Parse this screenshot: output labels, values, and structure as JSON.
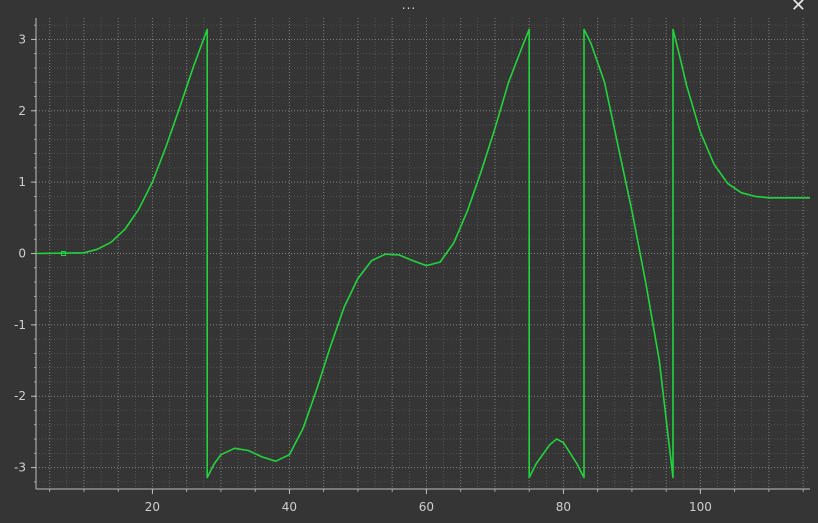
{
  "window": {
    "handle_label": "...",
    "close_glyph": "✕"
  },
  "colors": {
    "background": "#353535",
    "grid": "#8a8a8a",
    "axis": "#bdbdbd",
    "line": "#22d43c"
  },
  "chart_data": {
    "type": "line",
    "title": "",
    "xlabel": "",
    "ylabel": "",
    "xlim": [
      3,
      116
    ],
    "ylim": [
      -3.3,
      3.3
    ],
    "x_ticks": [
      20,
      40,
      60,
      80,
      100
    ],
    "y_ticks": [
      3,
      2,
      1,
      0,
      -1,
      -2,
      -3
    ],
    "grid": true,
    "marker_point": [
      7,
      0
    ],
    "series": [
      {
        "x": [
          3,
          10,
          12,
          14,
          16,
          18,
          20,
          22,
          24,
          26,
          28,
          28,
          29,
          30,
          32,
          34,
          36,
          38,
          40,
          42,
          44,
          46,
          48,
          50,
          52,
          54,
          56,
          58,
          60,
          62,
          64,
          66,
          68,
          70,
          72,
          74,
          75,
          75,
          76,
          78,
          79,
          80,
          82,
          83,
          83,
          84,
          86,
          88,
          90,
          92,
          94,
          96,
          96,
          97,
          98,
          100,
          102,
          104,
          106,
          108,
          110,
          112,
          116
        ],
        "y": [
          0,
          0.01,
          0.06,
          0.16,
          0.34,
          0.62,
          1.0,
          1.5,
          2.05,
          2.62,
          3.14,
          -3.14,
          -2.95,
          -2.82,
          -2.73,
          -2.76,
          -2.85,
          -2.91,
          -2.82,
          -2.45,
          -1.9,
          -1.3,
          -0.75,
          -0.35,
          -0.1,
          -0.01,
          -0.02,
          -0.1,
          -0.17,
          -0.12,
          0.15,
          0.6,
          1.15,
          1.75,
          2.4,
          2.9,
          3.14,
          -3.14,
          -2.95,
          -2.68,
          -2.6,
          -2.65,
          -2.95,
          -3.14,
          3.14,
          2.95,
          2.4,
          1.5,
          0.6,
          -0.4,
          -1.5,
          -3.14,
          3.14,
          2.75,
          2.35,
          1.7,
          1.25,
          0.98,
          0.85,
          0.8,
          0.78,
          0.78,
          0.78
        ]
      }
    ]
  }
}
